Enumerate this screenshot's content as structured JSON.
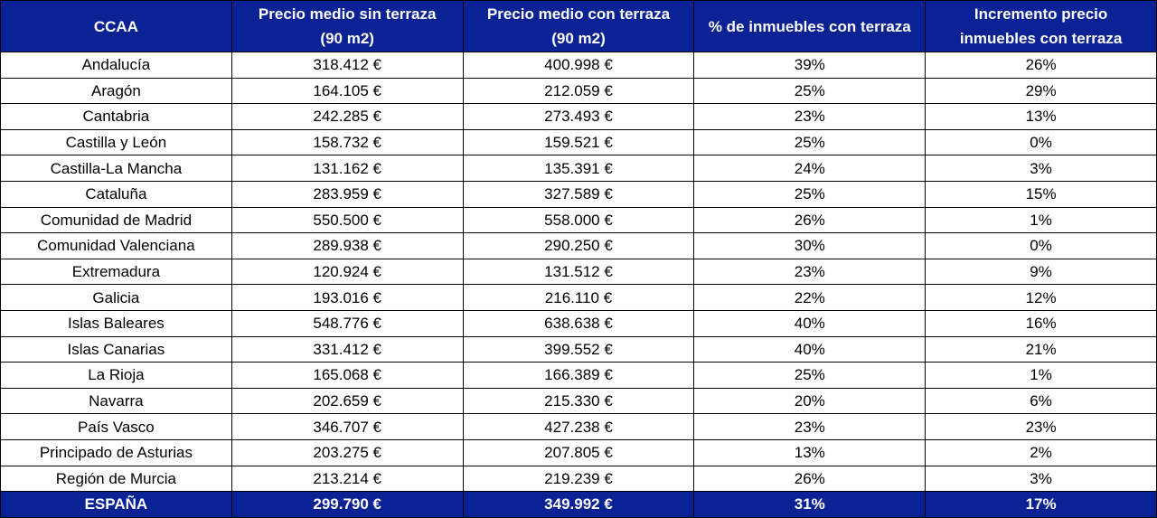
{
  "table": {
    "header": [
      [
        "CCAA"
      ],
      [
        "Precio medio sin terraza",
        "(90 m2)"
      ],
      [
        "Precio medio con terraza",
        "(90 m2)"
      ],
      [
        "% de inmuebles con terraza"
      ],
      [
        "Incremento precio",
        "inmuebles con terraza"
      ]
    ],
    "rows": [
      [
        "Andalucía",
        "318.412 €",
        "400.998 €",
        "39%",
        "26%"
      ],
      [
        "Aragón",
        "164.105 €",
        "212.059 €",
        "25%",
        "29%"
      ],
      [
        "Cantabria",
        "242.285 €",
        "273.493 €",
        "23%",
        "13%"
      ],
      [
        "Castilla y León",
        "158.732 €",
        "159.521 €",
        "25%",
        "0%"
      ],
      [
        "Castilla-La Mancha",
        "131.162 €",
        "135.391 €",
        "24%",
        "3%"
      ],
      [
        "Cataluña",
        "283.959 €",
        "327.589 €",
        "25%",
        "15%"
      ],
      [
        "Comunidad de Madrid",
        "550.500 €",
        "558.000 €",
        "26%",
        "1%"
      ],
      [
        "Comunidad Valenciana",
        "289.938 €",
        "290.250 €",
        "30%",
        "0%"
      ],
      [
        "Extremadura",
        "120.924 €",
        "131.512 €",
        "23%",
        "9%"
      ],
      [
        "Galicia",
        "193.016 €",
        "216.110 €",
        "22%",
        "12%"
      ],
      [
        "Islas Baleares",
        "548.776 €",
        "638.638 €",
        "40%",
        "16%"
      ],
      [
        "Islas Canarias",
        "331.412 €",
        "399.552 €",
        "40%",
        "21%"
      ],
      [
        "La Rioja",
        "165.068 €",
        "166.389 €",
        "25%",
        "1%"
      ],
      [
        "Navarra",
        "202.659 €",
        "215.330 €",
        "20%",
        "6%"
      ],
      [
        "País Vasco",
        "346.707 €",
        "427.238 €",
        "23%",
        "23%"
      ],
      [
        "Principado de Asturias",
        "203.275 €",
        "207.805 €",
        "13%",
        "2%"
      ],
      [
        "Región de Murcia",
        "213.214 €",
        "219.239 €",
        "26%",
        "3%"
      ]
    ],
    "total": [
      "ESPAÑA",
      "299.790 €",
      "349.992 €",
      "31%",
      "17%"
    ]
  }
}
